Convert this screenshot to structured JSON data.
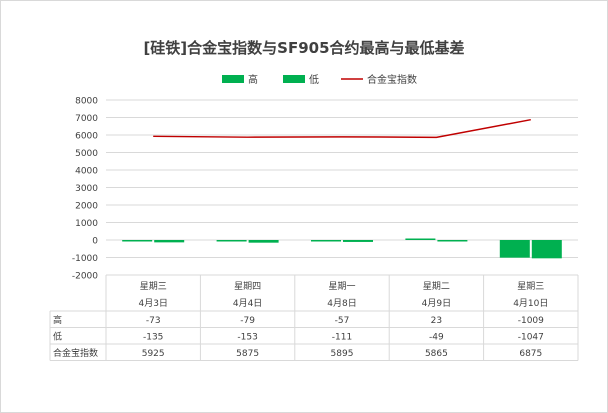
{
  "chart_data": {
    "type": "bar",
    "title": "[硅铁]合金宝指数与SF905合约最高与最低基差",
    "categories": [
      {
        "weekday": "星期三",
        "date": "4月3日"
      },
      {
        "weekday": "星期四",
        "date": "4月4日"
      },
      {
        "weekday": "星期一",
        "date": "4月8日"
      },
      {
        "weekday": "星期二",
        "date": "4月9日"
      },
      {
        "weekday": "星期三",
        "date": "4月10日"
      }
    ],
    "series": [
      {
        "name": "高",
        "kind": "bar",
        "color": "#00b050",
        "values": [
          -73,
          -79,
          -57,
          23,
          -1009
        ]
      },
      {
        "name": "低",
        "kind": "bar",
        "color": "#00b050",
        "values": [
          -135,
          -153,
          -111,
          -49,
          -1047
        ]
      },
      {
        "name": "合金宝指数",
        "kind": "line",
        "color": "#c00000",
        "values": [
          5925,
          5875,
          5895,
          5865,
          6875
        ]
      }
    ],
    "ylim": [
      -2000,
      8000
    ],
    "yticks": [
      -2000,
      -1000,
      0,
      1000,
      2000,
      3000,
      4000,
      5000,
      6000,
      7000,
      8000
    ],
    "grid": true,
    "legend": "top",
    "data_table": true
  }
}
